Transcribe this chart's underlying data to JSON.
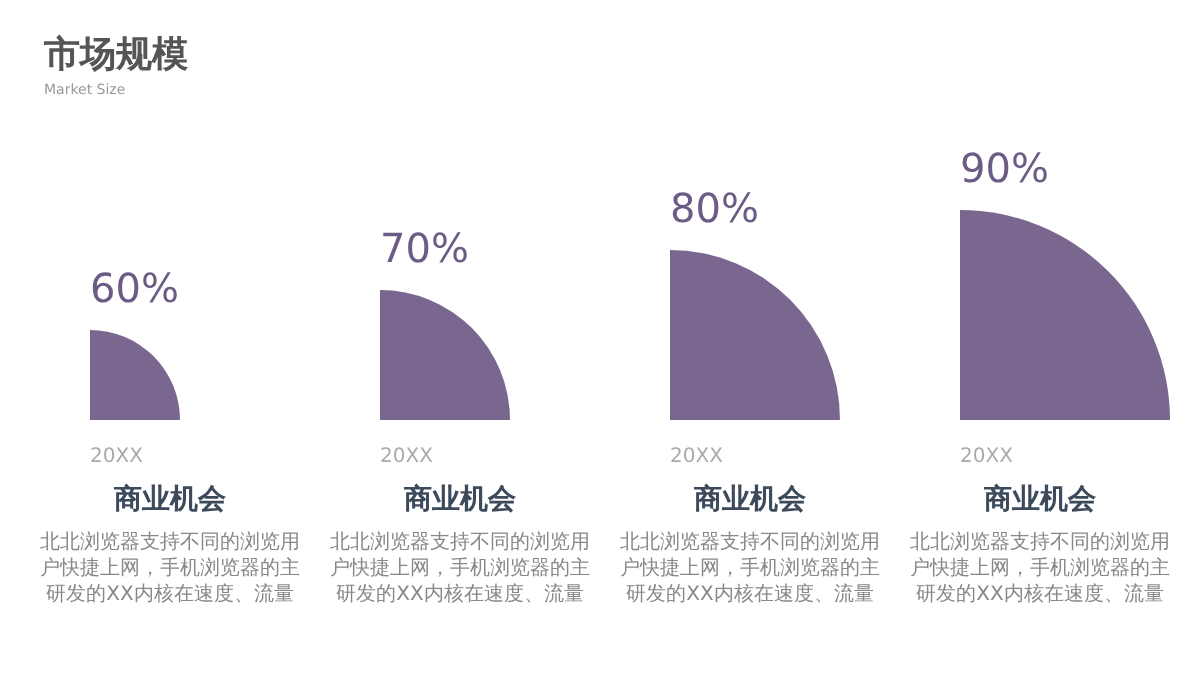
{
  "chart_data": {
    "type": "other",
    "title": "市场规模",
    "subtitle": "Market Size",
    "categories": [
      "20XX",
      "20XX",
      "20XX",
      "20XX"
    ],
    "values": [
      60,
      70,
      80,
      90
    ],
    "value_labels": [
      "60%",
      "70%",
      "80%",
      "90%"
    ],
    "color": "#7a6790",
    "annotations": [
      "商业机会",
      "商业机会",
      "商业机会",
      "商业机会",
      "北北浏览器支持不同的浏览用户快捷上网，手机浏览器的主研发的XX内核在速度、流量",
      "北北浏览器支持不同的浏览用户快捷上网，手机浏览器的主研发的XX内核在速度、流量",
      "北北浏览器支持不同的浏览用户快捷上网，手机浏览器的主研发的XX内核在速度、流量",
      "北北浏览器支持不同的浏览用户快捷上网，手机浏览器的主研发的XX内核在速度、流量"
    ]
  }
}
